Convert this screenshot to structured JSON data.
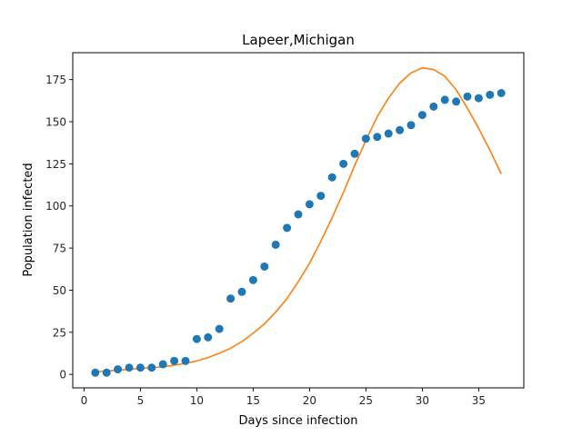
{
  "chart_data": {
    "type": "scatter",
    "title": "Lapeer,Michigan",
    "xlabel": "Days since infection",
    "ylabel": "Population infected",
    "xlim": [
      -1,
      39
    ],
    "ylim": [
      -8,
      191
    ],
    "xticks": [
      0,
      5,
      10,
      15,
      20,
      25,
      30,
      35
    ],
    "yticks": [
      0,
      25,
      50,
      75,
      100,
      125,
      150,
      175
    ],
    "grid": false,
    "legend": "none",
    "series": [
      {
        "kind": "scatter",
        "color": "#1f77b4",
        "x": [
          1,
          2,
          3,
          4,
          5,
          6,
          7,
          8,
          9,
          10,
          11,
          12,
          13,
          14,
          15,
          16,
          17,
          18,
          19,
          20,
          21,
          22,
          23,
          24,
          25,
          26,
          27,
          28,
          29,
          30,
          31,
          32,
          33,
          34,
          35,
          36,
          37
        ],
        "y": [
          1,
          1,
          3,
          4,
          4,
          4,
          6,
          8,
          8,
          21,
          22,
          27,
          45,
          49,
          56,
          64,
          77,
          87,
          95,
          101,
          106,
          117,
          125,
          131,
          140,
          141,
          143,
          145,
          148,
          154,
          159,
          163,
          162,
          165,
          164,
          166,
          167
        ]
      },
      {
        "kind": "line",
        "color": "#ff7f0e",
        "x": [
          1,
          2,
          3,
          4,
          5,
          6,
          7,
          8,
          9,
          10,
          11,
          12,
          13,
          14,
          15,
          16,
          17,
          18,
          19,
          20,
          21,
          22,
          23,
          24,
          25,
          26,
          27,
          28,
          29,
          30,
          31,
          32,
          33,
          34,
          35,
          36,
          37
        ],
        "y": [
          1.5,
          2,
          2.5,
          3,
          3.5,
          4,
          4.5,
          5.5,
          6.5,
          8,
          10,
          12.5,
          15.5,
          19.5,
          24.5,
          30,
          37,
          45,
          55,
          66,
          79,
          93,
          108,
          124,
          139,
          153,
          164,
          173,
          179,
          182,
          181,
          177,
          169,
          158,
          146,
          133,
          119
        ]
      }
    ]
  }
}
